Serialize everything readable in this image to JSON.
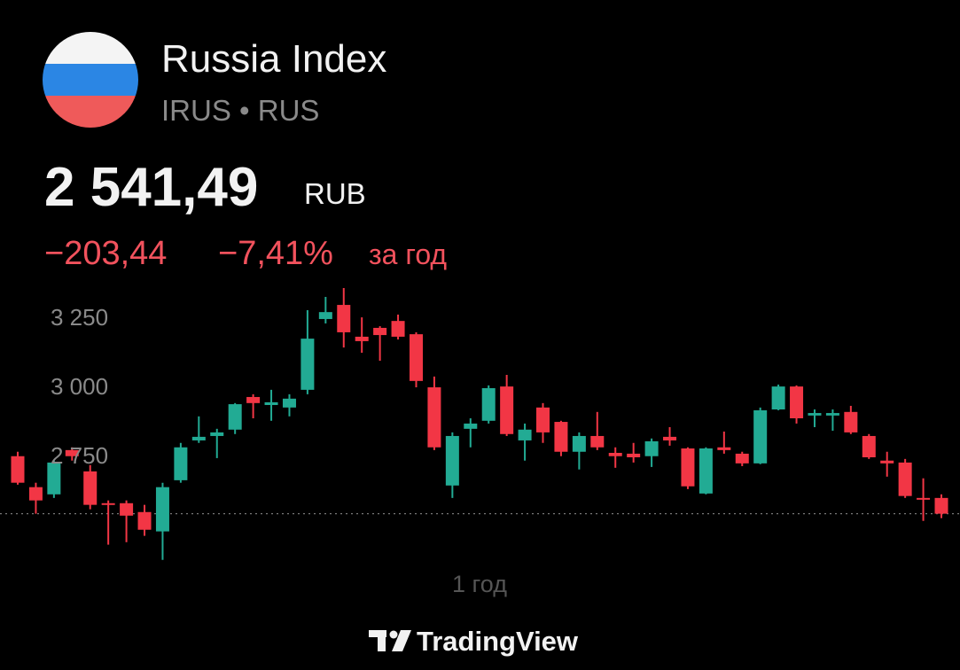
{
  "header": {
    "title": "Russia Index",
    "subtitle": "IRUS • RUS"
  },
  "price": {
    "value": "2 541,49",
    "currency": "RUB"
  },
  "change": {
    "absolute": "−203,44",
    "percent": "−7,41%",
    "period": "за год"
  },
  "chart_data": {
    "type": "candlestick",
    "open": [
      2754,
      2642,
      2616,
      2776,
      2699,
      2584,
      2584,
      2552,
      2482,
      2667,
      2811,
      2827,
      2850,
      2968,
      2939,
      2930,
      2994,
      3250,
      3301,
      3186,
      3218,
      3243,
      3195,
      3003,
      2648,
      2853,
      2882,
      3006,
      2811,
      2930,
      2878,
      2770,
      2827,
      2766,
      2763,
      2754,
      2824,
      2782,
      2619,
      2786,
      2763,
      2728,
      2923,
      3006,
      2901,
      2901,
      2914,
      2827,
      2738,
      2731,
      2603,
      2603
    ],
    "high": [
      2770,
      2658,
      2738,
      2786,
      2722,
      2594,
      2594,
      2578,
      2658,
      2802,
      2898,
      2853,
      2946,
      2978,
      2994,
      2978,
      3282,
      3330,
      3362,
      3256,
      3224,
      3266,
      3202,
      3042,
      2840,
      2891,
      3010,
      3048,
      2872,
      2946,
      2882,
      2840,
      2914,
      2786,
      2802,
      2818,
      2859,
      2786,
      2786,
      2843,
      2770,
      2930,
      3013,
      3010,
      2923,
      2923,
      2936,
      2834,
      2770,
      2744,
      2674,
      2616
    ],
    "low": [
      2651,
      2546,
      2603,
      2738,
      2562,
      2434,
      2443,
      2466,
      2379,
      2658,
      2802,
      2747,
      2834,
      2891,
      2882,
      2898,
      2978,
      3234,
      3147,
      3128,
      3099,
      3176,
      3003,
      2776,
      2603,
      2786,
      2872,
      2827,
      2738,
      2802,
      2754,
      2706,
      2776,
      2712,
      2731,
      2715,
      2792,
      2635,
      2616,
      2763,
      2718,
      2725,
      2920,
      2872,
      2859,
      2846,
      2834,
      2744,
      2680,
      2603,
      2520,
      2530
    ],
    "close": [
      2658,
      2594,
      2731,
      2754,
      2578,
      2578,
      2539,
      2488,
      2642,
      2786,
      2824,
      2840,
      2942,
      2946,
      2949,
      2962,
      3179,
      3275,
      3202,
      3170,
      3192,
      3186,
      3026,
      2786,
      2827,
      2872,
      3000,
      2834,
      2850,
      2840,
      2770,
      2827,
      2786,
      2754,
      2750,
      2808,
      2811,
      2645,
      2782,
      2776,
      2728,
      2920,
      3006,
      2891,
      2910,
      2910,
      2840,
      2750,
      2728,
      2610,
      2597,
      2546
    ],
    "up_color": "#22ab94",
    "down_color": "#f23645",
    "ylim": [
      2350,
      3380
    ],
    "yticks": [
      {
        "value": 3250,
        "label": "3 250"
      },
      {
        "value": 3000,
        "label": "3 000"
      },
      {
        "value": 2750,
        "label": "2 750"
      }
    ]
  },
  "footer": {
    "period": "1 год",
    "brand": "TradingView"
  }
}
